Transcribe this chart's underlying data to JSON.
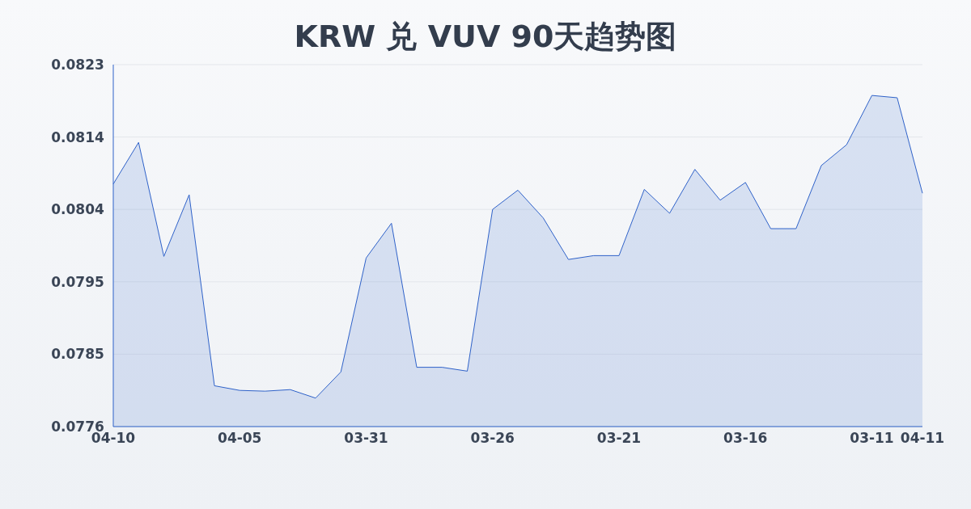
{
  "chart_data": {
    "type": "area",
    "title": "KRW 兑 VUV 90天趋势图",
    "categories": [
      "04-10",
      null,
      null,
      null,
      null,
      "04-05",
      null,
      null,
      null,
      null,
      "03-31",
      null,
      null,
      null,
      null,
      "03-26",
      null,
      null,
      null,
      null,
      "03-21",
      null,
      null,
      null,
      null,
      "03-16",
      null,
      null,
      null,
      null,
      "03-11",
      null,
      "04-11"
    ],
    "series": [
      {
        "color": "#2f62c9",
        "values": [
          0.08075,
          0.08129,
          0.07981,
          0.08061,
          0.07813,
          0.07807,
          0.07806,
          0.07808,
          0.07797,
          0.07831,
          0.07979,
          0.08024,
          0.07837,
          0.07837,
          0.07832,
          0.08042,
          0.08067,
          0.08031,
          0.07977,
          0.07982,
          0.07982,
          0.08068,
          0.08037,
          0.08094,
          0.08054,
          0.08077,
          0.08017,
          0.08017,
          0.08099,
          0.08126,
          0.0819,
          0.08187,
          0.08063
        ]
      }
    ],
    "ylim": [
      0.0776,
      0.0823
    ],
    "yticks": [
      {
        "value": 0.0776,
        "label": "0.0776"
      },
      {
        "value": 0.07854,
        "label": "0.0785"
      },
      {
        "value": 0.07948,
        "label": "0.0795"
      },
      {
        "value": 0.08042,
        "label": "0.0804"
      },
      {
        "value": 0.08136,
        "label": "0.0814"
      },
      {
        "value": 0.0823,
        "label": "0.0823"
      }
    ],
    "grid": "y"
  }
}
